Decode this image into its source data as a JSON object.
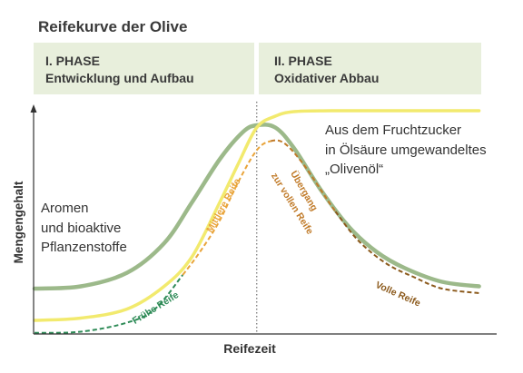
{
  "chart_data": {
    "type": "line",
    "title": "Reifekurve der Olive",
    "xlabel": "Reifezeit",
    "ylabel": "Mengengehalt",
    "xlim": [
      0,
      100
    ],
    "ylim": [
      0,
      100
    ],
    "grid": false,
    "legend": "none",
    "phases": [
      {
        "label": "I. PHASE",
        "name": "Entwicklung und Aufbau"
      },
      {
        "label": "II. PHASE",
        "name": "Oxidativer Abbau"
      }
    ],
    "phase_boundary_x": 48,
    "annotations": [
      {
        "lines": [
          "Aromen",
          "und bioaktive",
          "Pflanzenstoffe"
        ]
      },
      {
        "lines": [
          "Aus dem Fruchtzucker",
          "in Ölsäure umgewandeltes",
          "„Olivenöl“"
        ]
      }
    ],
    "series": [
      {
        "color": "#9cb98a",
        "style": "solid",
        "x": [
          0,
          10,
          20,
          28,
          34,
          40,
          45,
          48,
          52,
          56,
          62,
          68,
          74,
          80,
          88,
          96
        ],
        "y": [
          20,
          21,
          27,
          40,
          58,
          77,
          89,
          92,
          91,
          82,
          63,
          47,
          36,
          29,
          23,
          21
        ]
      },
      {
        "color": "#f2ea6e",
        "style": "solid",
        "x": [
          0,
          10,
          20,
          28,
          34,
          40,
          44,
          48,
          52,
          56,
          64,
          80,
          96
        ],
        "y": [
          6,
          7,
          11,
          21,
          34,
          58,
          75,
          91,
          96,
          98,
          98.4,
          98.4,
          98.4
        ]
      },
      {
        "label": [
          "Frühe Reife"
        ],
        "color": "#2e8b57",
        "style": "dashed",
        "x": [
          0,
          10,
          20,
          26,
          32
        ],
        "y": [
          0.5,
          1,
          5,
          11,
          26
        ]
      },
      {
        "label": [
          "Mittlere Reife"
        ],
        "color": "#e9a43a",
        "style": "dashed",
        "x": [
          32,
          36,
          40,
          44,
          48,
          51
        ],
        "y": [
          26,
          37,
          50,
          67,
          81,
          85
        ]
      },
      {
        "label": [
          "Übergang",
          "zur vollen Reife"
        ],
        "color": "#c07a28",
        "style": "dashed",
        "x": [
          51,
          54,
          58,
          62,
          65
        ],
        "y": [
          85,
          84,
          75,
          63,
          54
        ]
      },
      {
        "label": [
          "Volle Reife"
        ],
        "color": "#8c5a1c",
        "style": "dashed",
        "x": [
          65,
          70,
          76,
          82,
          88,
          96
        ],
        "y": [
          54,
          41,
          31,
          25,
          20,
          18
        ]
      }
    ]
  },
  "colors": {
    "phase_background": "#e8efdc",
    "text": "#333333"
  }
}
